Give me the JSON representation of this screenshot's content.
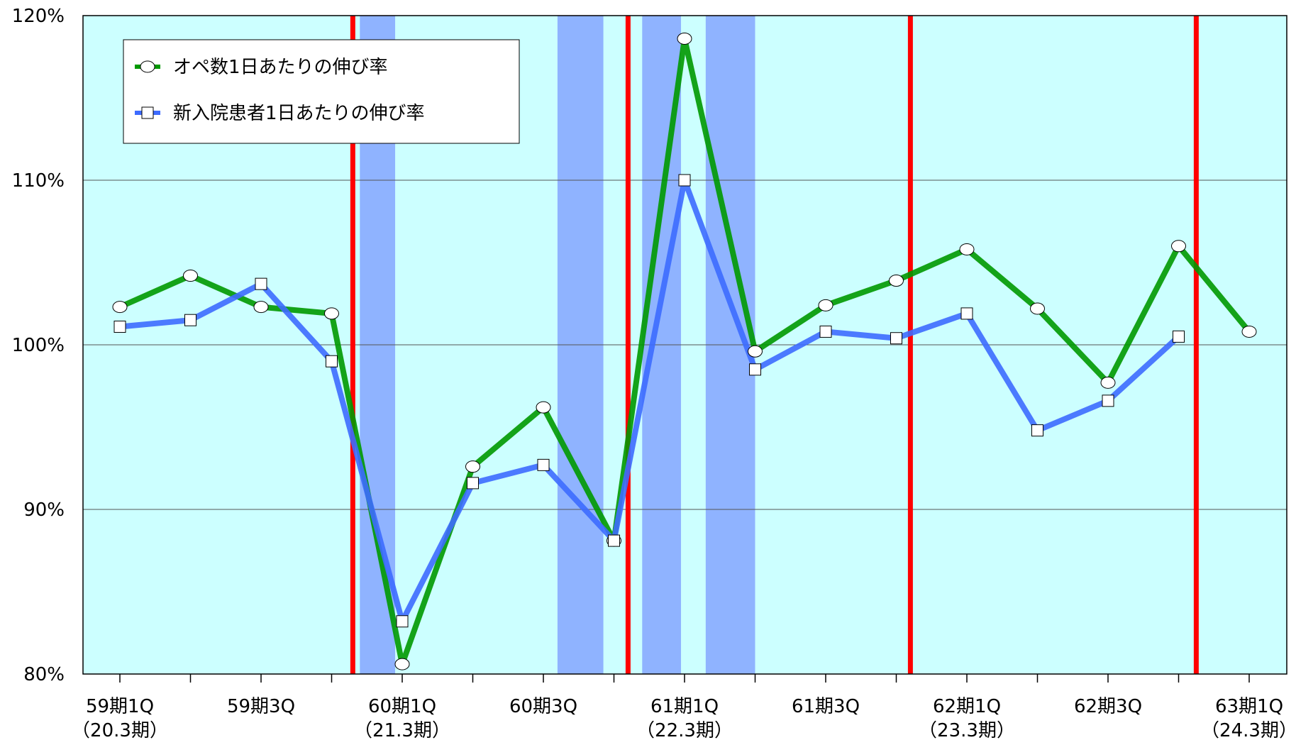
{
  "chart_data": {
    "type": "line",
    "title": "",
    "xlabel": "",
    "ylabel": "",
    "ylim": [
      80,
      120
    ],
    "y_ticks": [
      "80%",
      "90%",
      "100%",
      "110%",
      "120%"
    ],
    "x_tick_labels": [
      {
        "index": 0,
        "line1": "59期1Q",
        "line2": "（20.3期）"
      },
      {
        "index": 2,
        "line1": "59期3Q",
        "line2": ""
      },
      {
        "index": 4,
        "line1": "60期1Q",
        "line2": "（21.3期）"
      },
      {
        "index": 6,
        "line1": "60期3Q",
        "line2": ""
      },
      {
        "index": 8,
        "line1": "61期1Q",
        "line2": "（22.3期）"
      },
      {
        "index": 10,
        "line1": "61期3Q",
        "line2": ""
      },
      {
        "index": 12,
        "line1": "62期1Q",
        "line2": "（23.3期）"
      },
      {
        "index": 14,
        "line1": "62期3Q",
        "line2": ""
      },
      {
        "index": 16,
        "line1": "63期1Q",
        "line2": "（24.3期）"
      }
    ],
    "n_points": 17,
    "grid": true,
    "legend_position": "top-left",
    "background_color": "#ccffff",
    "shaded_color": "#8fb3ff",
    "shaded_ranges": [
      [
        3.4,
        3.9
      ],
      [
        6.2,
        6.85
      ],
      [
        7.4,
        7.95
      ],
      [
        8.3,
        9.0
      ]
    ],
    "red_line_color": "#ff0000",
    "red_lines": [
      3.3,
      7.2,
      11.2,
      15.25
    ],
    "series": [
      {
        "name": "オペ数1日あたりの伸び率",
        "color": "#009900",
        "marker": "circle",
        "values": [
          102.3,
          104.2,
          102.3,
          101.9,
          80.6,
          92.6,
          96.2,
          88.1,
          118.6,
          99.6,
          102.4,
          103.9,
          105.8,
          102.2,
          97.7,
          106.0,
          100.8
        ]
      },
      {
        "name": "新入院患者1日あたりの伸び率",
        "color": "#3d6bff",
        "marker": "square",
        "values": [
          101.1,
          101.5,
          103.7,
          99.0,
          83.2,
          91.6,
          92.7,
          88.1,
          110.0,
          98.5,
          100.8,
          100.4,
          101.9,
          94.8,
          96.6,
          100.5,
          null
        ]
      }
    ]
  },
  "legend": {
    "items": [
      {
        "label": "オペ数1日あたりの伸び率"
      },
      {
        "label": "新入院患者1日あたりの伸び率"
      }
    ]
  }
}
